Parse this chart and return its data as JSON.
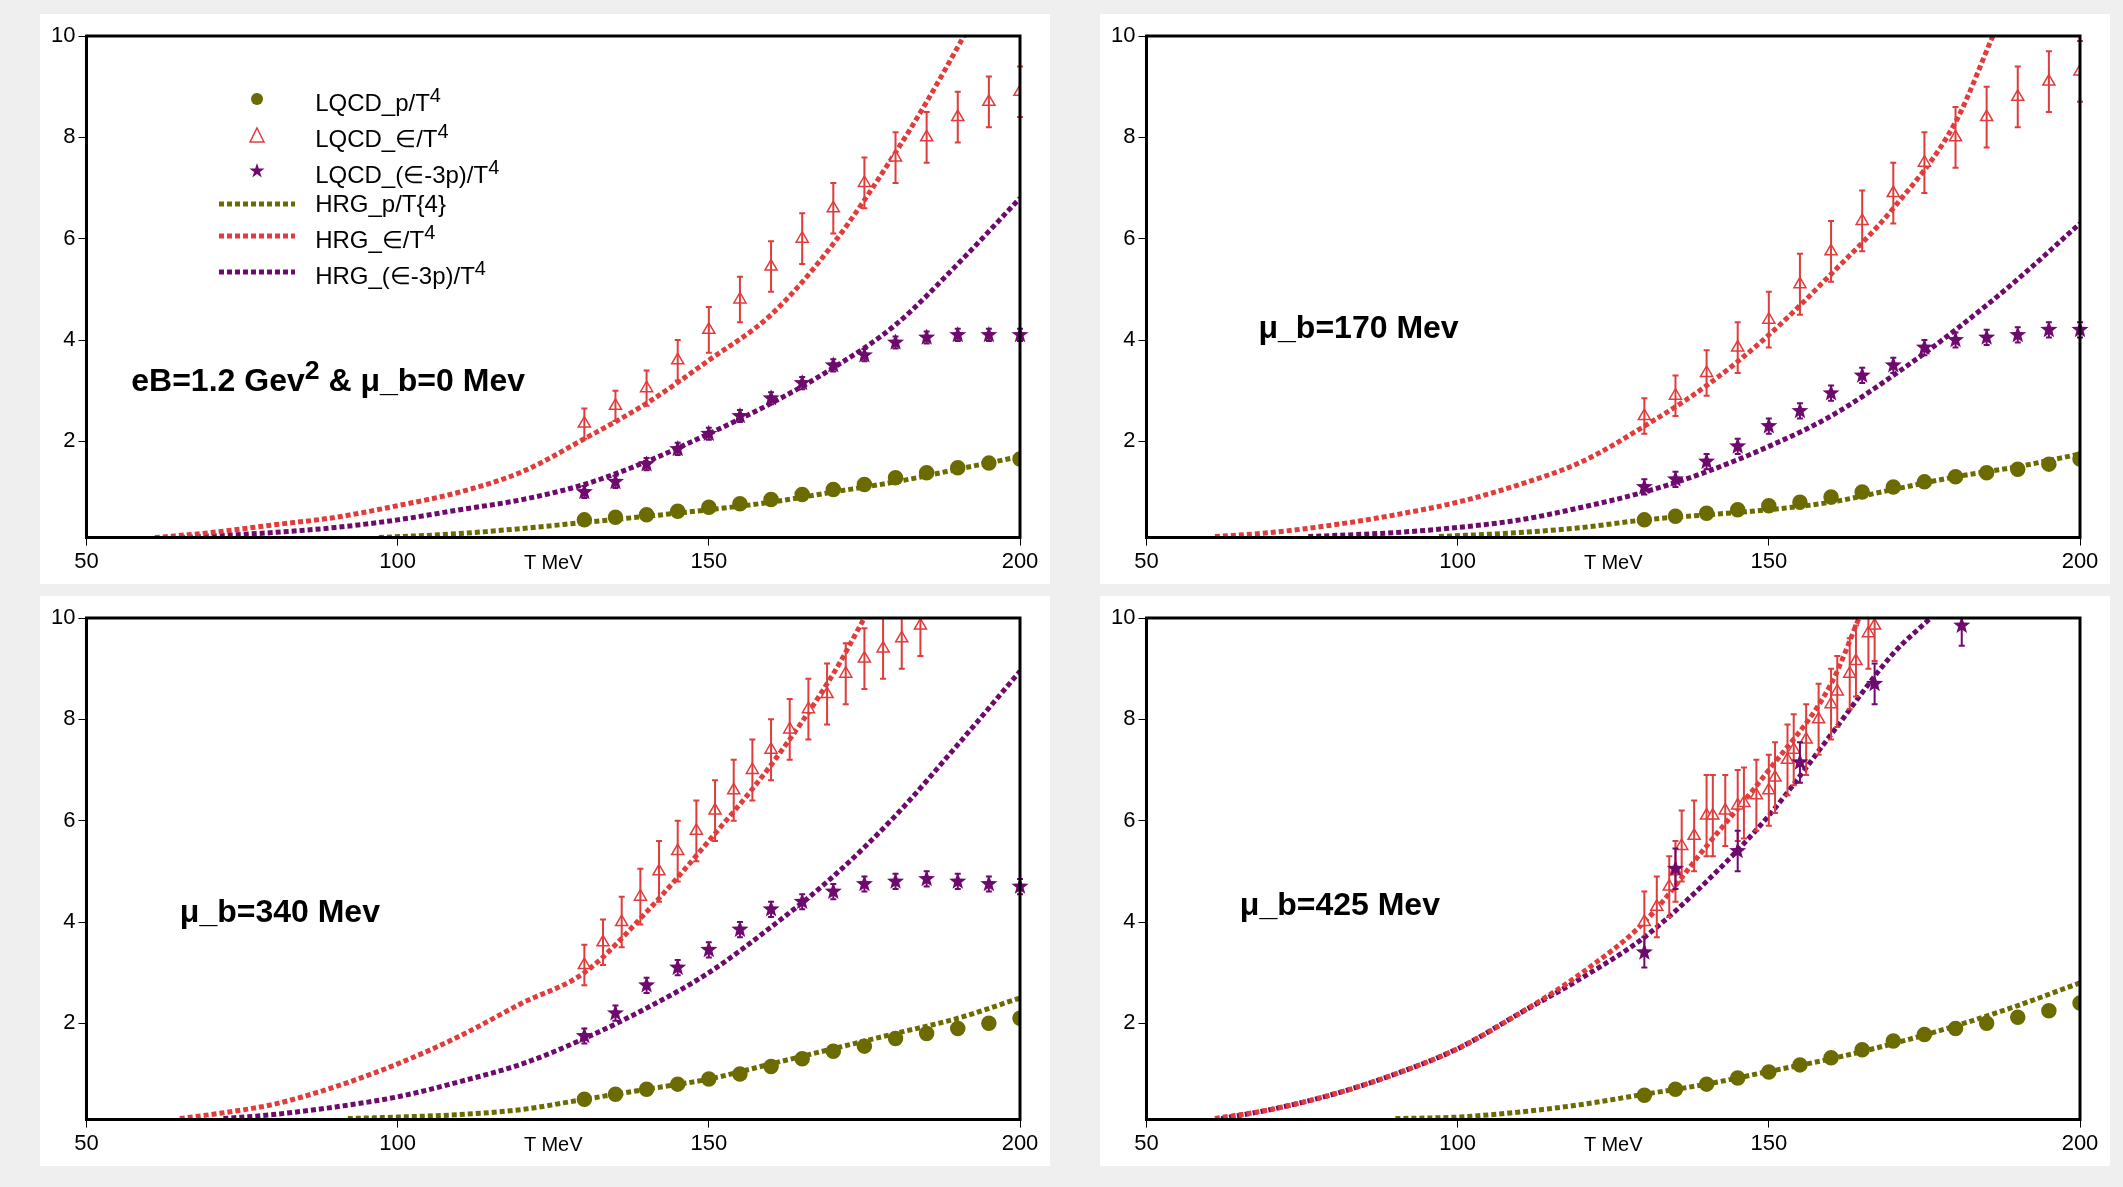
{
  "chart_data": [
    {
      "type": "scatter",
      "xlabel": "T MeV",
      "xlim": [
        50,
        200
      ],
      "xticks": [
        50,
        100,
        150,
        200
      ],
      "ylim": [
        0.1,
        10
      ],
      "yticks": [
        2,
        4,
        6,
        8,
        10
      ],
      "grid": false,
      "legend": "top left",
      "annotations": [
        "eB=1.2 Gev$^{2}$ & μ_b=0 Mev"
      ],
      "series": [
        {
          "name": "LQCD_p/T$^{4}$",
          "marker": "circle",
          "color": "#6b6b00",
          "x": [
            130,
            135,
            140,
            145,
            150,
            155,
            160,
            165,
            170,
            175,
            180,
            185,
            190,
            195,
            200
          ],
          "values": [
            0.45,
            0.5,
            0.55,
            0.62,
            0.7,
            0.77,
            0.85,
            0.95,
            1.05,
            1.15,
            1.28,
            1.38,
            1.48,
            1.57,
            1.65
          ]
        },
        {
          "name": "LQCD_∈/T$^{4}$",
          "marker": "triangle",
          "color": "#e03c3c",
          "x": [
            130,
            135,
            140,
            145,
            150,
            155,
            160,
            165,
            170,
            175,
            180,
            185,
            190,
            195,
            200
          ],
          "values": [
            2.35,
            2.7,
            3.05,
            3.6,
            4.2,
            4.8,
            5.45,
            6.0,
            6.6,
            7.1,
            7.6,
            8.0,
            8.4,
            8.7,
            8.9
          ],
          "errors": [
            0.3,
            0.3,
            0.35,
            0.4,
            0.45,
            0.45,
            0.5,
            0.5,
            0.5,
            0.5,
            0.5,
            0.5,
            0.5,
            0.5,
            0.5
          ]
        },
        {
          "name": "LQCD_(∈-3p)/T$^{4}$",
          "marker": "star",
          "color": "#6e0a6e",
          "x": [
            130,
            135,
            140,
            145,
            150,
            155,
            160,
            165,
            170,
            175,
            180,
            185,
            190,
            195,
            200
          ],
          "values": [
            1.0,
            1.2,
            1.55,
            1.85,
            2.15,
            2.5,
            2.85,
            3.15,
            3.5,
            3.7,
            3.95,
            4.05,
            4.1,
            4.1,
            4.1
          ],
          "errors": [
            0.12,
            0.12,
            0.12,
            0.12,
            0.12,
            0.12,
            0.12,
            0.12,
            0.12,
            0.12,
            0.12,
            0.12,
            0.12,
            0.12,
            0.12
          ]
        },
        {
          "name": "HRG_p/T{4}",
          "type": "line",
          "marker": "none",
          "line_style": "dotted",
          "color": "#6b6b00",
          "x": [
            97,
            110,
            120,
            130,
            140,
            150,
            160,
            170,
            180,
            190,
            200
          ],
          "values": [
            0.1,
            0.18,
            0.28,
            0.4,
            0.52,
            0.65,
            0.8,
            1.0,
            1.2,
            1.45,
            1.7
          ]
        },
        {
          "name": "HRG_∈/T$^{4}$",
          "type": "line",
          "marker": "none",
          "line_style": "dotted",
          "color": "#e03c3c",
          "x": [
            61,
            70,
            80,
            90,
            100,
            110,
            120,
            130,
            140,
            150,
            160,
            170,
            180,
            185,
            191
          ],
          "values": [
            0.1,
            0.2,
            0.35,
            0.5,
            0.73,
            1.0,
            1.4,
            2.05,
            2.75,
            3.6,
            4.5,
            5.9,
            7.7,
            8.7,
            10
          ]
        },
        {
          "name": "HRG_(∈-3p)/T$^{4}$",
          "type": "line",
          "marker": "none",
          "line_style": "dotted",
          "color": "#6e0a6e",
          "x": [
            65,
            80,
            90,
            100,
            110,
            120,
            130,
            140,
            150,
            160,
            170,
            180,
            190,
            200
          ],
          "values": [
            0.1,
            0.2,
            0.3,
            0.45,
            0.65,
            0.85,
            1.15,
            1.6,
            2.15,
            2.75,
            3.45,
            4.3,
            5.5,
            6.8
          ]
        }
      ]
    },
    {
      "type": "scatter",
      "xlabel": "T MeV",
      "xlim": [
        50,
        200
      ],
      "xticks": [
        50,
        100,
        150,
        200
      ],
      "ylim": [
        0.1,
        10
      ],
      "yticks": [
        2,
        4,
        6,
        8,
        10
      ],
      "grid": false,
      "annotations": [
        "μ_b=170 Mev"
      ],
      "series": [
        {
          "marker": "circle",
          "color": "#6b6b00",
          "x": [
            130,
            135,
            140,
            145,
            150,
            155,
            160,
            165,
            170,
            175,
            180,
            185,
            190,
            195,
            200
          ],
          "values": [
            0.45,
            0.52,
            0.58,
            0.65,
            0.73,
            0.8,
            0.9,
            1.0,
            1.1,
            1.2,
            1.3,
            1.38,
            1.45,
            1.55,
            1.65
          ]
        },
        {
          "marker": "triangle",
          "color": "#e03c3c",
          "x": [
            130,
            135,
            140,
            145,
            150,
            155,
            160,
            165,
            170,
            175,
            180,
            185,
            190,
            195,
            200
          ],
          "values": [
            2.5,
            2.9,
            3.35,
            3.85,
            4.4,
            5.1,
            5.75,
            6.35,
            6.9,
            7.5,
            8.0,
            8.4,
            8.8,
            9.1,
            9.3
          ],
          "errors": [
            0.35,
            0.4,
            0.45,
            0.5,
            0.55,
            0.6,
            0.6,
            0.6,
            0.6,
            0.6,
            0.6,
            0.6,
            0.6,
            0.6,
            0.6
          ]
        },
        {
          "marker": "star",
          "color": "#6e0a6e",
          "x": [
            130,
            135,
            140,
            145,
            150,
            155,
            160,
            165,
            170,
            175,
            180,
            185,
            190,
            195,
            200
          ],
          "values": [
            1.1,
            1.25,
            1.6,
            1.9,
            2.3,
            2.6,
            2.95,
            3.3,
            3.5,
            3.85,
            4.0,
            4.05,
            4.1,
            4.2,
            4.2
          ],
          "errors": [
            0.15,
            0.15,
            0.15,
            0.15,
            0.15,
            0.15,
            0.15,
            0.15,
            0.15,
            0.15,
            0.15,
            0.15,
            0.15,
            0.15,
            0.15
          ]
        },
        {
          "type": "line",
          "marker": "none",
          "line_style": "dotted",
          "color": "#6b6b00",
          "x": [
            97,
            110,
            120,
            130,
            140,
            150,
            160,
            170,
            180,
            190,
            200
          ],
          "values": [
            0.12,
            0.2,
            0.3,
            0.45,
            0.55,
            0.65,
            0.8,
            1.05,
            1.3,
            1.5,
            1.75
          ]
        },
        {
          "type": "line",
          "marker": "none",
          "line_style": "dotted",
          "color": "#e03c3c",
          "x": [
            61,
            70,
            80,
            90,
            100,
            110,
            120,
            130,
            140,
            150,
            160,
            170,
            180,
            186
          ],
          "values": [
            0.12,
            0.2,
            0.35,
            0.55,
            0.8,
            1.15,
            1.6,
            2.3,
            3.1,
            4.1,
            5.3,
            6.6,
            8.3,
            10
          ]
        },
        {
          "type": "line",
          "marker": "none",
          "line_style": "dotted",
          "color": "#6e0a6e",
          "x": [
            76,
            90,
            100,
            110,
            120,
            130,
            140,
            150,
            160,
            170,
            180,
            190,
            200
          ],
          "values": [
            0.12,
            0.2,
            0.3,
            0.45,
            0.7,
            1.0,
            1.4,
            1.9,
            2.5,
            3.3,
            4.2,
            5.2,
            6.3
          ]
        }
      ]
    },
    {
      "type": "scatter",
      "xlabel": "T MeV",
      "xlim": [
        50,
        200
      ],
      "xticks": [
        50,
        100,
        150,
        200
      ],
      "ylim": [
        0.1,
        10
      ],
      "yticks": [
        2,
        4,
        6,
        8,
        10
      ],
      "grid": false,
      "annotations": [
        "μ_b=340 Mev"
      ],
      "series": [
        {
          "marker": "circle",
          "color": "#6b6b00",
          "x": [
            130,
            135,
            140,
            145,
            150,
            155,
            160,
            165,
            170,
            175,
            180,
            185,
            190,
            195,
            200
          ],
          "values": [
            0.5,
            0.6,
            0.7,
            0.8,
            0.9,
            1.0,
            1.15,
            1.3,
            1.45,
            1.55,
            1.7,
            1.8,
            1.9,
            2.0,
            2.1
          ]
        },
        {
          "marker": "triangle",
          "color": "#e03c3c",
          "x": [
            130,
            133,
            136,
            139,
            142,
            145,
            148,
            151,
            154,
            157,
            160,
            163,
            166,
            169,
            172,
            175,
            178,
            181,
            184
          ],
          "values": [
            3.15,
            3.6,
            4.0,
            4.5,
            5.0,
            5.4,
            5.8,
            6.2,
            6.6,
            7.0,
            7.4,
            7.8,
            8.2,
            8.5,
            8.9,
            9.2,
            9.4,
            9.6,
            9.85
          ],
          "errors": [
            0.4,
            0.45,
            0.5,
            0.55,
            0.6,
            0.6,
            0.6,
            0.6,
            0.6,
            0.6,
            0.6,
            0.6,
            0.6,
            0.6,
            0.6,
            0.6,
            0.6,
            [
              9.0,
              10
            ],
            [
              9.25,
              10
            ]
          ]
        },
        {
          "marker": "star",
          "color": "#6e0a6e",
          "x": [
            130,
            135,
            140,
            145,
            150,
            155,
            160,
            165,
            170,
            175,
            180,
            185,
            190,
            195,
            200
          ],
          "values": [
            1.75,
            2.2,
            2.75,
            3.1,
            3.45,
            3.85,
            4.25,
            4.4,
            4.6,
            4.75,
            4.8,
            4.85,
            4.8,
            4.75,
            4.7
          ],
          "errors": [
            0.15,
            0.15,
            0.15,
            0.15,
            0.15,
            0.15,
            0.15,
            0.15,
            0.15,
            0.15,
            0.15,
            0.15,
            0.15,
            0.15,
            0.15
          ]
        },
        {
          "type": "line",
          "marker": "none",
          "line_style": "dotted",
          "color": "#6b6b00",
          "x": [
            92,
            100,
            110,
            120,
            130,
            140,
            150,
            160,
            170,
            180,
            190,
            200
          ],
          "values": [
            0.12,
            0.15,
            0.2,
            0.3,
            0.5,
            0.7,
            0.9,
            1.2,
            1.5,
            1.8,
            2.1,
            2.5
          ]
        },
        {
          "type": "line",
          "marker": "none",
          "line_style": "dotted",
          "color": "#e03c3c",
          "x": [
            65,
            70,
            80,
            90,
            100,
            110,
            120,
            130,
            140,
            150,
            160,
            170,
            175
          ],
          "values": [
            0.12,
            0.2,
            0.4,
            0.75,
            1.2,
            1.75,
            2.4,
            3.0,
            4.2,
            5.6,
            7.1,
            8.9,
            10
          ]
        },
        {
          "type": "line",
          "marker": "none",
          "line_style": "dotted",
          "color": "#6e0a6e",
          "x": [
            72,
            80,
            90,
            100,
            110,
            120,
            130,
            140,
            150,
            160,
            170,
            180,
            190,
            200
          ],
          "values": [
            0.12,
            0.2,
            0.35,
            0.55,
            0.85,
            1.2,
            1.7,
            2.3,
            3.0,
            3.9,
            4.9,
            6.1,
            7.5,
            8.95
          ]
        }
      ]
    },
    {
      "type": "scatter",
      "xlabel": "T MeV",
      "xlim": [
        50,
        200
      ],
      "xticks": [
        50,
        100,
        150,
        200
      ],
      "ylim": [
        0.1,
        10
      ],
      "yticks": [
        2,
        4,
        6,
        8,
        10
      ],
      "grid": false,
      "annotations": [
        "μ_b=425 Mev"
      ],
      "series": [
        {
          "marker": "circle",
          "color": "#6b6b00",
          "x": [
            130,
            135,
            140,
            145,
            150,
            155,
            160,
            165,
            170,
            175,
            180,
            185,
            190,
            195,
            200
          ],
          "values": [
            0.58,
            0.7,
            0.8,
            0.92,
            1.04,
            1.18,
            1.32,
            1.48,
            1.65,
            1.78,
            1.9,
            2.0,
            2.12,
            2.25,
            2.4
          ]
        },
        {
          "marker": "triangle",
          "color": "#e03c3c",
          "x": [
            130,
            132,
            134,
            135,
            136,
            138,
            140,
            141,
            143,
            145,
            146,
            148,
            150,
            151,
            153,
            154,
            156,
            158,
            160,
            161,
            163,
            164,
            166,
            167
          ],
          "values": [
            4.0,
            4.3,
            4.7,
            5.0,
            5.5,
            5.7,
            6.1,
            6.1,
            6.2,
            6.3,
            6.35,
            6.5,
            6.6,
            6.85,
            7.2,
            7.4,
            7.6,
            8.0,
            8.3,
            8.55,
            8.9,
            9.15,
            9.7,
            9.85
          ],
          "errors": [
            0.6,
            0.6,
            0.6,
            0.6,
            0.7,
            0.7,
            0.8,
            0.8,
            0.7,
            0.7,
            0.7,
            0.7,
            0.7,
            0.7,
            0.7,
            0.7,
            0.7,
            0.7,
            0.7,
            0.7,
            0.7,
            0.7,
            [
              9.0,
              10
            ],
            [
              9.15,
              10
            ]
          ]
        },
        {
          "marker": "star",
          "color": "#6e0a6e",
          "x": [
            130,
            135,
            145,
            155,
            167,
            181
          ],
          "values": [
            3.4,
            5.05,
            5.4,
            7.15,
            8.7,
            9.85
          ],
          "errors": [
            0.3,
            0.4,
            0.4,
            0.4,
            0.4,
            [
              9.45,
              10
            ]
          ]
        },
        {
          "type": "line",
          "marker": "none",
          "line_style": "dotted",
          "color": "#6b6b00",
          "x": [
            90,
            100,
            110,
            120,
            130,
            140,
            150,
            160,
            170,
            180,
            190,
            200
          ],
          "values": [
            0.12,
            0.15,
            0.25,
            0.4,
            0.6,
            0.8,
            1.05,
            1.3,
            1.6,
            1.95,
            2.35,
            2.8
          ]
        },
        {
          "type": "line",
          "marker": "none",
          "line_style": "dotted",
          "color": "#e03c3c",
          "x": [
            61,
            70,
            80,
            90,
            100,
            110,
            120,
            130,
            140,
            150,
            160,
            164.5
          ],
          "values": [
            0.12,
            0.3,
            0.6,
            1.0,
            1.5,
            2.2,
            3.0,
            4.0,
            5.5,
            7.0,
            8.7,
            10
          ]
        },
        {
          "type": "line",
          "marker": "none",
          "line_style": "dotted",
          "color": "#6e0a6e",
          "x": [
            62,
            70,
            80,
            90,
            100,
            110,
            120,
            130,
            140,
            150,
            160,
            170,
            176
          ],
          "values": [
            0.12,
            0.3,
            0.6,
            1.0,
            1.5,
            2.2,
            2.9,
            3.7,
            4.8,
            6.1,
            7.7,
            9.3,
            10
          ]
        }
      ]
    }
  ]
}
